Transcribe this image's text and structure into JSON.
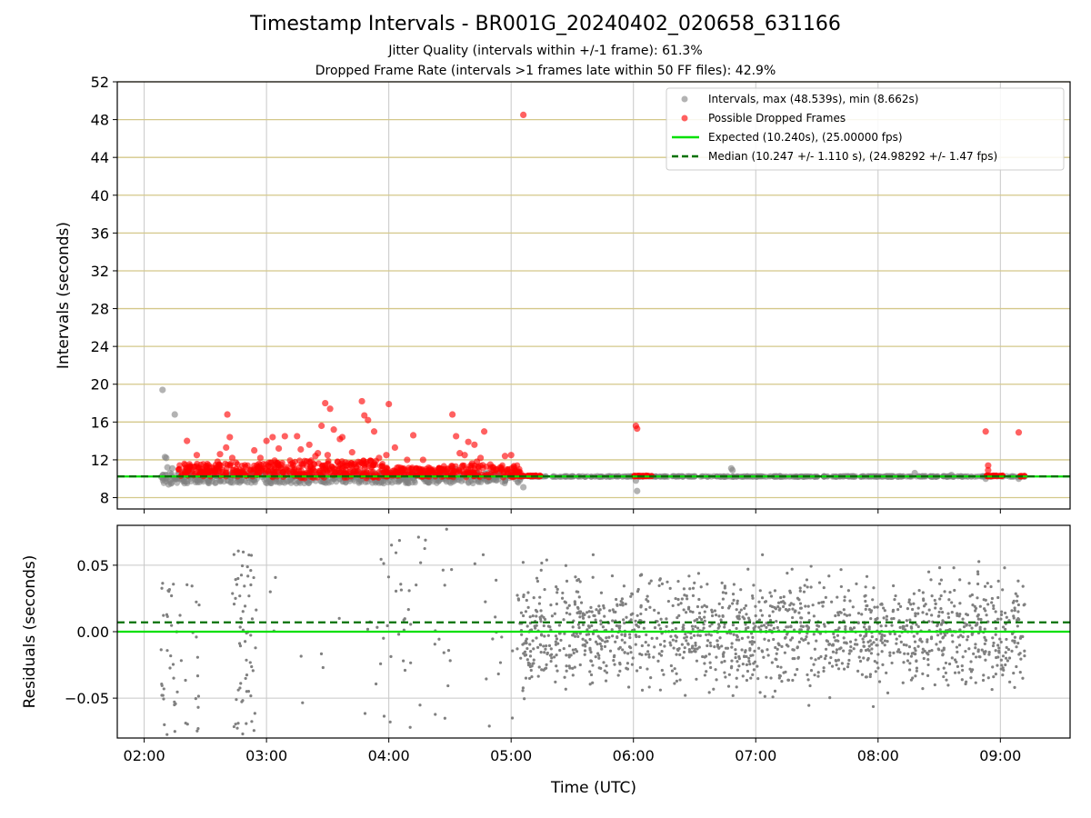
{
  "title": "Timestamp Intervals - BR001G_20240402_020658_631166",
  "subtitle1": "Jitter Quality (intervals within +/-1 frame): 61.3%",
  "subtitle2": "Dropped Frame Rate (intervals >1 frames late within 50 FF files): 42.9%",
  "colors": {
    "interval_points": "#808080",
    "dropped_points": "#ff0000",
    "expected_line": "#00e000",
    "median_line": "#007000",
    "hgrid_top": "#d4c88a",
    "grid": "#c8c8c8"
  },
  "legend": {
    "intervals": "Intervals, max (48.539s), min (8.662s)",
    "dropped": "Possible Dropped Frames",
    "expected": "Expected (10.240s), (25.00000 fps)",
    "median": "Median (10.247 +/- 1.110 s), (24.98292 +/- 1.47 fps)"
  },
  "chart_data": [
    {
      "type": "scatter",
      "panel": "top",
      "ylabel": "Intervals (seconds)",
      "ylim": [
        6.8,
        52
      ],
      "yticks": [
        8,
        12,
        16,
        20,
        24,
        28,
        32,
        36,
        40,
        44,
        48,
        52
      ],
      "xlim_hours": [
        1.78,
        9.57
      ],
      "expected": 10.24,
      "median": 10.247,
      "legend_position": "top-right",
      "series": [
        {
          "name": "Intervals, max (48.539s), min (8.662s)",
          "marker": "gray",
          "points": [
            [
              2.15,
              19.4
            ],
            [
              2.17,
              12.3
            ],
            [
              2.18,
              12.2
            ],
            [
              2.2,
              9.4
            ],
            [
              2.22,
              9.5
            ],
            [
              2.25,
              16.8
            ],
            [
              2.14,
              10.2
            ],
            [
              2.19,
              11.2
            ],
            [
              2.21,
              10.6
            ],
            [
              2.23,
              11.1
            ],
            [
              2.3,
              10.0
            ],
            [
              2.35,
              9.7
            ],
            [
              2.72,
              10.4
            ],
            [
              2.78,
              9.6
            ],
            [
              2.8,
              9.8
            ],
            [
              2.85,
              10.1
            ],
            [
              2.92,
              10.0
            ],
            [
              3.05,
              10.1
            ],
            [
              3.2,
              10.0
            ],
            [
              3.35,
              10.2
            ],
            [
              3.55,
              10.0
            ],
            [
              3.8,
              10.1
            ],
            [
              3.95,
              10.3
            ],
            [
              4.1,
              9.9
            ],
            [
              4.3,
              10.0
            ],
            [
              4.5,
              10.1
            ],
            [
              4.7,
              9.9
            ],
            [
              4.85,
              10.0
            ],
            [
              4.95,
              10.2
            ],
            [
              5.1,
              9.1
            ],
            [
              5.0,
              10.6
            ],
            [
              4.52,
              10.0
            ],
            [
              4.55,
              11.0
            ],
            [
              6.02,
              9.8
            ],
            [
              6.03,
              8.7
            ],
            [
              6.8,
              11.1
            ],
            [
              6.81,
              10.9
            ],
            [
              8.3,
              10.6
            ],
            [
              8.6,
              10.4
            ],
            [
              8.88,
              10.0
            ],
            [
              9.15,
              10.0
            ],
            [
              5.5,
              10.25
            ],
            [
              6.4,
              10.25
            ],
            [
              7.2,
              10.25
            ],
            [
              7.8,
              10.25
            ],
            [
              8.1,
              10.25
            ],
            [
              3.6,
              10.3
            ],
            [
              4.2,
              10.1
            ]
          ]
        },
        {
          "name": "Possible Dropped Frames",
          "marker": "red",
          "points": [
            [
              5.1,
              48.5
            ],
            [
              2.68,
              16.8
            ],
            [
              2.7,
              14.4
            ],
            [
              2.67,
              13.3
            ],
            [
              2.35,
              14.0
            ],
            [
              2.43,
              12.5
            ],
            [
              2.9,
              13.0
            ],
            [
              2.95,
              12.2
            ],
            [
              3.0,
              14.0
            ],
            [
              3.05,
              14.4
            ],
            [
              3.1,
              13.2
            ],
            [
              3.15,
              14.5
            ],
            [
              3.25,
              14.5
            ],
            [
              3.28,
              13.1
            ],
            [
              3.35,
              13.6
            ],
            [
              3.45,
              15.6
            ],
            [
              3.48,
              18.0
            ],
            [
              3.52,
              17.4
            ],
            [
              3.55,
              15.2
            ],
            [
              3.6,
              14.2
            ],
            [
              3.62,
              14.4
            ],
            [
              3.7,
              12.8
            ],
            [
              3.78,
              18.2
            ],
            [
              3.8,
              16.7
            ],
            [
              3.83,
              16.2
            ],
            [
              3.88,
              15.0
            ],
            [
              3.92,
              12.2
            ],
            [
              3.98,
              12.5
            ],
            [
              4.0,
              17.9
            ],
            [
              4.05,
              13.3
            ],
            [
              4.15,
              12.0
            ],
            [
              4.2,
              14.6
            ],
            [
              4.28,
              12.0
            ],
            [
              4.52,
              16.8
            ],
            [
              4.55,
              14.5
            ],
            [
              4.58,
              12.7
            ],
            [
              4.62,
              12.5
            ],
            [
              4.65,
              13.9
            ],
            [
              4.7,
              13.6
            ],
            [
              4.75,
              12.2
            ],
            [
              4.78,
              15.0
            ],
            [
              4.83,
              11.5
            ],
            [
              4.95,
              12.4
            ],
            [
              5.0,
              12.5
            ],
            [
              6.02,
              15.6
            ],
            [
              6.03,
              15.3
            ],
            [
              8.88,
              15.0
            ],
            [
              8.9,
              11.4
            ],
            [
              8.9,
              10.9
            ],
            [
              9.15,
              14.9
            ],
            [
              2.47,
              11.0
            ],
            [
              2.55,
              11.2
            ],
            [
              2.6,
              11.8
            ],
            [
              2.62,
              12.6
            ],
            [
              2.72,
              12.2
            ],
            [
              2.75,
              11.7
            ],
            [
              2.8,
              10.8
            ],
            [
              3.4,
              12.4
            ],
            [
              3.42,
              12.7
            ],
            [
              3.5,
              12.5
            ],
            [
              3.58,
              11.8
            ],
            [
              3.65,
              11.4
            ],
            [
              3.72,
              11.6
            ],
            [
              3.85,
              11.9
            ],
            [
              4.08,
              11.2
            ],
            [
              4.25,
              11.0
            ],
            [
              4.35,
              10.9
            ],
            [
              4.45,
              10.8
            ],
            [
              4.6,
              11.3
            ],
            [
              4.68,
              11.6
            ],
            [
              4.72,
              11.8
            ],
            [
              4.88,
              11.0
            ],
            [
              4.92,
              11.2
            ],
            [
              5.05,
              10.8
            ]
          ]
        }
      ]
    },
    {
      "type": "scatter",
      "panel": "bottom",
      "ylabel": "Residuals (seconds)",
      "ylim": [
        -0.08,
        0.08
      ],
      "yticks": [
        -0.05,
        0.0,
        0.05
      ],
      "ytick_labels": [
        "−0.05",
        "0.00",
        "0.05"
      ],
      "xlabel": "Time (UTC)",
      "xticks": [
        "02:00",
        "03:00",
        "04:00",
        "05:00",
        "06:00",
        "07:00",
        "08:00",
        "09:00"
      ],
      "xtick_hours": [
        2,
        3,
        4,
        5,
        6,
        7,
        8,
        9
      ],
      "expected": 0.0,
      "median": 0.007,
      "series": [
        {
          "name": "",
          "marker": "gray",
          "point_clusters": [
            {
              "from": 2.13,
              "to": 2.45,
              "count": 50,
              "ymin": -0.078,
              "ymax": 0.042
            },
            {
              "from": 2.72,
              "to": 2.92,
              "count": 60,
              "ymin": -0.078,
              "ymax": 0.07
            },
            {
              "from": 3.0,
              "to": 3.6,
              "count": 8,
              "ymin": -0.06,
              "ymax": 0.076
            },
            {
              "from": 3.8,
              "to": 4.05,
              "count": 15,
              "ymin": -0.075,
              "ymax": 0.078
            },
            {
              "from": 4.05,
              "to": 4.55,
              "count": 35,
              "ymin": -0.078,
              "ymax": 0.078
            },
            {
              "from": 4.7,
              "to": 5.05,
              "count": 14,
              "ymin": -0.075,
              "ymax": 0.07
            },
            {
              "from": 5.05,
              "to": 9.2,
              "count": 1500,
              "ymin": -0.055,
              "ymax": 0.06
            }
          ]
        }
      ]
    }
  ]
}
